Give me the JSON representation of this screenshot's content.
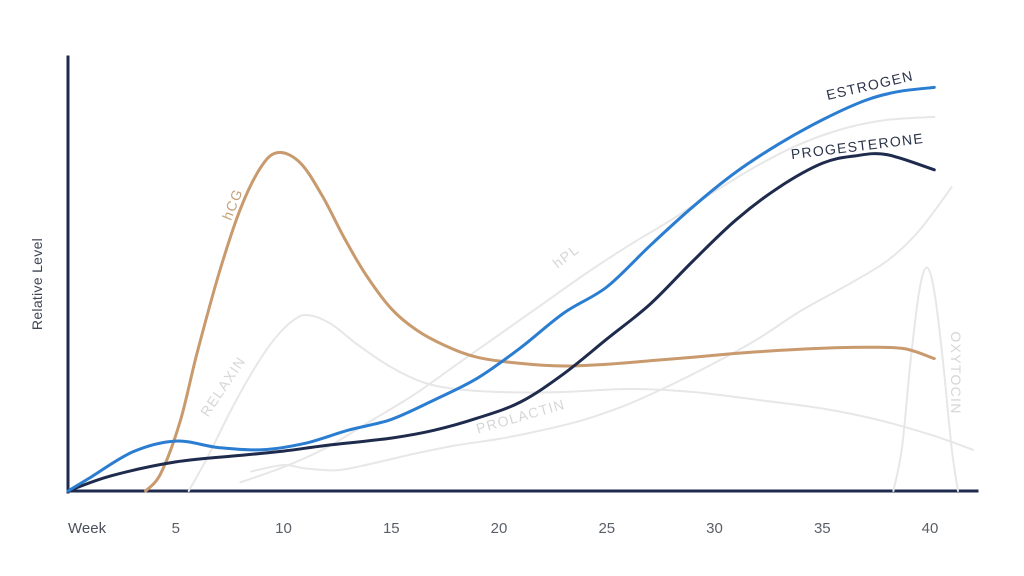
{
  "chart_data": {
    "type": "line",
    "title": "",
    "xlabel": "Week",
    "ylabel": "Relative Level",
    "x_ticks": [
      5,
      10,
      15,
      20,
      25,
      30,
      35,
      40
    ],
    "x_range": [
      0,
      42
    ],
    "y_range": [
      0,
      1
    ],
    "grid": false,
    "legend": "labels drawn along curves",
    "axis_color": "#1f2b4d",
    "background_color": "#ffffff",
    "series": [
      {
        "id": "relaxin",
        "name": "RELAXIN",
        "color": "#e7e7e7",
        "width": 2,
        "label": {
          "text": "RELAXIN",
          "color": "#d6d6d6",
          "x": 227,
          "y": 389,
          "angle": -56
        },
        "points": [
          [
            5.6,
            0
          ],
          [
            6.5,
            0.08
          ],
          [
            7.5,
            0.18
          ],
          [
            8.5,
            0.27
          ],
          [
            9.5,
            0.345
          ],
          [
            10.5,
            0.395
          ],
          [
            11.2,
            0.405
          ],
          [
            12.2,
            0.385
          ],
          [
            13.5,
            0.335
          ],
          [
            15,
            0.285
          ],
          [
            16.5,
            0.25
          ],
          [
            18,
            0.235
          ],
          [
            20,
            0.228
          ],
          [
            23,
            0.228
          ],
          [
            26,
            0.235
          ],
          [
            29,
            0.228
          ],
          [
            32,
            0.21
          ],
          [
            35,
            0.19
          ],
          [
            37.5,
            0.165
          ],
          [
            40,
            0.13
          ],
          [
            42,
            0.095
          ]
        ]
      },
      {
        "id": "prolactin",
        "name": "PROLACTIN",
        "color": "#e7e7e7",
        "width": 2,
        "label": {
          "text": "PROLACTIN",
          "color": "#d6d6d6",
          "x": 522,
          "y": 421,
          "angle": -16
        },
        "points": [
          [
            8.5,
            0.045
          ],
          [
            10,
            0.06
          ],
          [
            11,
            0.052
          ],
          [
            12.5,
            0.048
          ],
          [
            14,
            0.062
          ],
          [
            16,
            0.085
          ],
          [
            18,
            0.105
          ],
          [
            20,
            0.12
          ],
          [
            22,
            0.14
          ],
          [
            24,
            0.165
          ],
          [
            26,
            0.2
          ],
          [
            28,
            0.245
          ],
          [
            30,
            0.295
          ],
          [
            32,
            0.35
          ],
          [
            34,
            0.415
          ],
          [
            36,
            0.47
          ],
          [
            38,
            0.53
          ],
          [
            39.5,
            0.6
          ],
          [
            41,
            0.7
          ]
        ]
      },
      {
        "id": "hpl",
        "name": "hPL",
        "color": "#e7e7e7",
        "width": 2,
        "label": {
          "text": "hPL",
          "color": "#d6d6d6",
          "x": 569,
          "y": 260,
          "angle": -38
        },
        "points": [
          [
            8,
            0.02
          ],
          [
            10,
            0.055
          ],
          [
            12,
            0.1
          ],
          [
            14,
            0.16
          ],
          [
            16,
            0.22
          ],
          [
            18,
            0.29
          ],
          [
            20,
            0.36
          ],
          [
            22,
            0.43
          ],
          [
            24,
            0.5
          ],
          [
            26,
            0.565
          ],
          [
            28,
            0.625
          ],
          [
            30,
            0.69
          ],
          [
            32,
            0.75
          ],
          [
            34,
            0.8
          ],
          [
            36,
            0.835
          ],
          [
            38,
            0.855
          ],
          [
            40.2,
            0.862
          ]
        ]
      },
      {
        "id": "oxytocin",
        "name": "OXYTOCIN",
        "color": "#e7e7e7",
        "width": 2,
        "label": {
          "text": "OXYTOCIN",
          "color": "#d6d6d6",
          "x": 951,
          "y": 373,
          "angle": 90
        },
        "points": [
          [
            38.3,
            0
          ],
          [
            38.7,
            0.1
          ],
          [
            39.1,
            0.3
          ],
          [
            39.5,
            0.46
          ],
          [
            39.85,
            0.515
          ],
          [
            40.2,
            0.46
          ],
          [
            40.6,
            0.3
          ],
          [
            41,
            0.1
          ],
          [
            41.3,
            0
          ]
        ]
      },
      {
        "id": "hcg",
        "name": "hCG",
        "color": "#c89a6e",
        "width": 3,
        "label": {
          "text": "hCG",
          "color": "#c7a078",
          "x": 237,
          "y": 206,
          "angle": -68
        },
        "points": [
          [
            3.6,
            0
          ],
          [
            4.3,
            0.04
          ],
          [
            5.2,
            0.16
          ],
          [
            6,
            0.32
          ],
          [
            7,
            0.5
          ],
          [
            8,
            0.65
          ],
          [
            9,
            0.75
          ],
          [
            9.8,
            0.78
          ],
          [
            10.8,
            0.755
          ],
          [
            11.8,
            0.68
          ],
          [
            12.8,
            0.585
          ],
          [
            13.8,
            0.5
          ],
          [
            15,
            0.42
          ],
          [
            16.2,
            0.37
          ],
          [
            17.5,
            0.335
          ],
          [
            19,
            0.308
          ],
          [
            21,
            0.294
          ],
          [
            23,
            0.288
          ],
          [
            25,
            0.292
          ],
          [
            27,
            0.3
          ],
          [
            29,
            0.308
          ],
          [
            31,
            0.317
          ],
          [
            33,
            0.324
          ],
          [
            35,
            0.329
          ],
          [
            37,
            0.331
          ],
          [
            38.8,
            0.328
          ],
          [
            40.2,
            0.305
          ]
        ]
      },
      {
        "id": "progesterone",
        "name": "PROGESTERONE",
        "color": "#1f2b4d",
        "width": 3,
        "label": {
          "text": "PROGESTERONE",
          "color": "#2a3349",
          "x": 858,
          "y": 151,
          "angle": -7
        },
        "points": [
          [
            0,
            0
          ],
          [
            2,
            0.035
          ],
          [
            5,
            0.067
          ],
          [
            8,
            0.082
          ],
          [
            10,
            0.092
          ],
          [
            12,
            0.105
          ],
          [
            15,
            0.122
          ],
          [
            17,
            0.14
          ],
          [
            19,
            0.168
          ],
          [
            21,
            0.205
          ],
          [
            23,
            0.27
          ],
          [
            25,
            0.35
          ],
          [
            27,
            0.43
          ],
          [
            29,
            0.53
          ],
          [
            31,
            0.625
          ],
          [
            33,
            0.7
          ],
          [
            35,
            0.755
          ],
          [
            36.5,
            0.772
          ],
          [
            38,
            0.775
          ],
          [
            40.2,
            0.74
          ]
        ]
      },
      {
        "id": "estrogen",
        "name": "ESTROGEN",
        "color": "#2b7dd1",
        "width": 3,
        "label": {
          "text": "ESTROGEN",
          "color": "#2a3349",
          "x": 871,
          "y": 90,
          "angle": -13
        },
        "points": [
          [
            0,
            0
          ],
          [
            1,
            0.03
          ],
          [
            3,
            0.09
          ],
          [
            5,
            0.115
          ],
          [
            7,
            0.1
          ],
          [
            9,
            0.095
          ],
          [
            11,
            0.11
          ],
          [
            13,
            0.14
          ],
          [
            15,
            0.165
          ],
          [
            17,
            0.21
          ],
          [
            19,
            0.26
          ],
          [
            21,
            0.33
          ],
          [
            23,
            0.41
          ],
          [
            25,
            0.47
          ],
          [
            27,
            0.565
          ],
          [
            29,
            0.655
          ],
          [
            31,
            0.735
          ],
          [
            33,
            0.8
          ],
          [
            35,
            0.855
          ],
          [
            37,
            0.9
          ],
          [
            38.5,
            0.92
          ],
          [
            40.2,
            0.93
          ]
        ]
      }
    ]
  }
}
